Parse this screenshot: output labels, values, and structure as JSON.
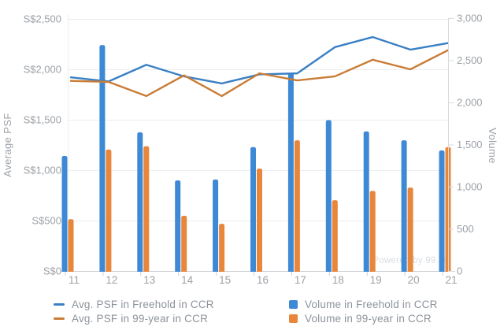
{
  "watermark": "Powered by 99.co",
  "colors": {
    "line_freehold": "#3A80C4",
    "line_99year": "#C97C36",
    "bar_freehold": "#3E89D5",
    "bar_99year": "#E8873C",
    "axis_text": "#9CA1A7",
    "legend_text": "#8D939B",
    "gridline": "#EBEDEE",
    "axis_line": "#CDD0D3",
    "right_axis_line": "#D8DADC",
    "watermark_text": "#D9DDE1"
  },
  "chart_data": {
    "type": "bar",
    "subtype": "combo line+column, dual axis",
    "categories": [
      "11",
      "12",
      "13",
      "14",
      "15",
      "16",
      "17",
      "18",
      "19",
      "20",
      "21"
    ],
    "left_axis": {
      "title": "Average PSF",
      "min": 0,
      "max": 2500,
      "tick_step": 500,
      "tick_labels": [
        "S$0",
        "S$500",
        "S$1,000",
        "S$1,500",
        "S$2,000",
        "S$2,500"
      ]
    },
    "right_axis": {
      "title": "Volume",
      "min": 0,
      "max": 3000,
      "tick_step": 500,
      "tick_labels": [
        "0",
        "500",
        "1,000",
        "1,500",
        "2,000",
        "2,500",
        "3,000"
      ]
    },
    "grid": "horizontal only, from left axis",
    "legend_position": "bottom, two columns",
    "series": [
      {
        "name": "Avg. PSF in Freehold in CCR",
        "type": "line",
        "axis": "left",
        "color": "#3A80C4",
        "values": [
          1920,
          1880,
          2045,
          1930,
          1860,
          1950,
          1960,
          2220,
          2320,
          2195,
          2260
        ]
      },
      {
        "name": "Avg. PSF in 99-year in CCR",
        "type": "line",
        "axis": "left",
        "color": "#C97C36",
        "values": [
          1885,
          1875,
          1735,
          1940,
          1735,
          1960,
          1890,
          1930,
          2095,
          2000,
          2190
        ]
      },
      {
        "name": "Volume in Freehold in CCR",
        "type": "bar",
        "axis": "right",
        "color": "#3E89D5",
        "values": [
          1365,
          2680,
          1645,
          1075,
          1085,
          1470,
          2345,
          1790,
          1655,
          1550,
          1430
        ]
      },
      {
        "name": "Volume in 99-year in CCR",
        "type": "bar",
        "axis": "right",
        "color": "#E8873C",
        "values": [
          615,
          1440,
          1480,
          655,
          560,
          1215,
          1550,
          840,
          950,
          990,
          1470
        ]
      }
    ]
  }
}
